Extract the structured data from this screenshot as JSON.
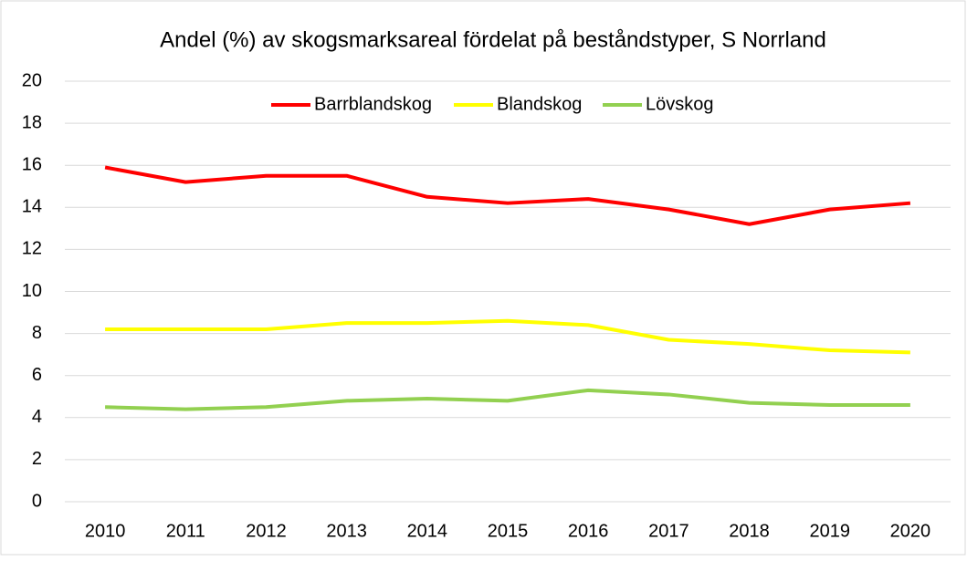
{
  "chart_data": {
    "type": "line",
    "title": "Andel (%) av skogsmarksareal fördelat på beståndstyper, S Norrland",
    "categories": [
      "2010",
      "2011",
      "2012",
      "2013",
      "2014",
      "2015",
      "2016",
      "2017",
      "2018",
      "2019",
      "2020"
    ],
    "series": [
      {
        "name": "Barrblandskog",
        "color": "#ff0000",
        "values": [
          15.9,
          15.2,
          15.5,
          15.5,
          14.5,
          14.2,
          14.4,
          13.9,
          13.2,
          13.9,
          14.2
        ]
      },
      {
        "name": "Blandskog",
        "color": "#ffff00",
        "values": [
          8.2,
          8.2,
          8.2,
          8.5,
          8.5,
          8.6,
          8.4,
          7.7,
          7.5,
          7.2,
          7.1
        ]
      },
      {
        "name": "Lövskog",
        "color": "#92d050",
        "values": [
          4.5,
          4.4,
          4.5,
          4.8,
          4.9,
          4.8,
          5.3,
          5.1,
          4.7,
          4.6,
          4.6
        ]
      }
    ],
    "ylim": [
      0,
      20
    ],
    "yticks": [
      0,
      2,
      4,
      6,
      8,
      10,
      12,
      14,
      16,
      18,
      20
    ],
    "grid": true,
    "legend": "top"
  }
}
